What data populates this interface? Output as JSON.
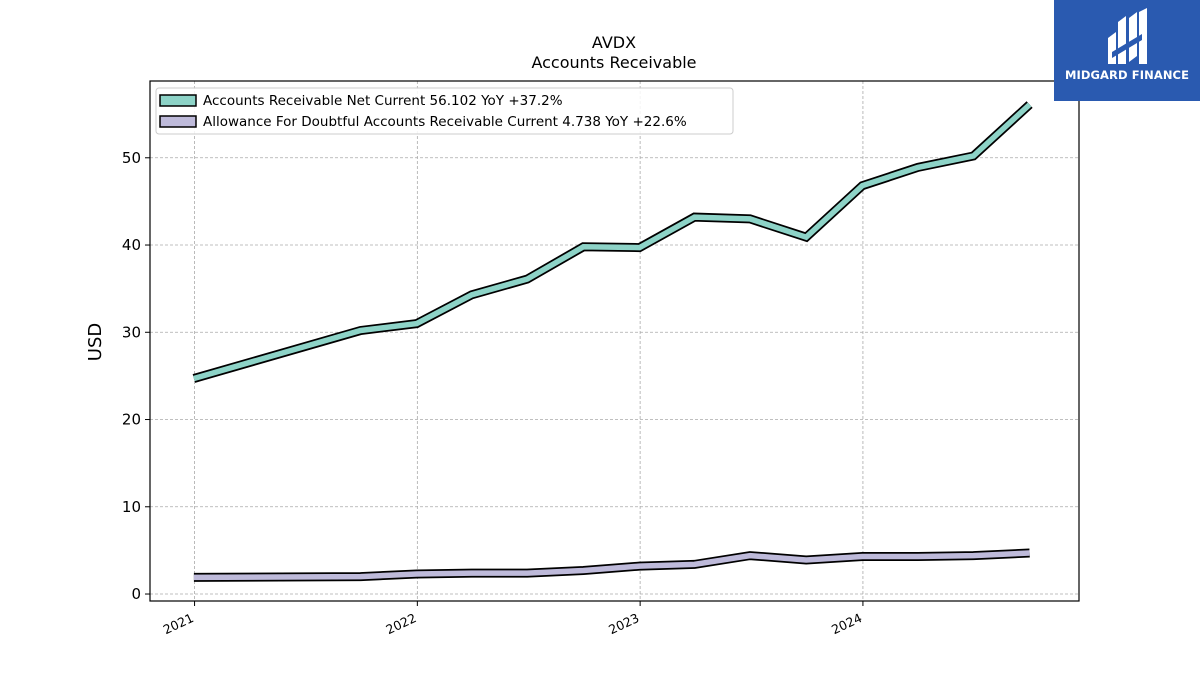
{
  "chart_data": {
    "type": "line",
    "title": "AVDX",
    "subtitle": "Accounts Receivable",
    "xlabel": "",
    "ylabel": "USD",
    "xlim": [
      "2020-10-20",
      "2024-12-20"
    ],
    "ylim": [
      -0.8,
      58.8
    ],
    "x_ticks": [
      "2021",
      "2022",
      "2023",
      "2024"
    ],
    "y_ticks": [
      0,
      10,
      20,
      30,
      40,
      50
    ],
    "grid": true,
    "legend_position": "top-left",
    "series": [
      {
        "name": "Accounts Receivable Net Current  56.102 YoY +37.2%",
        "color": "#8dd3c7",
        "x": [
          "2020-12-31",
          "2021-09-30",
          "2021-12-31",
          "2022-03-31",
          "2022-06-30",
          "2022-09-30",
          "2022-12-31",
          "2023-03-31",
          "2023-06-30",
          "2023-09-30",
          "2023-12-31",
          "2024-03-31",
          "2024-06-30",
          "2024-09-30"
        ],
        "values": [
          24.7,
          30.2,
          31.0,
          34.3,
          36.1,
          39.8,
          39.7,
          43.2,
          43.0,
          40.9,
          46.8,
          48.9,
          50.2,
          56.1
        ]
      },
      {
        "name": "Allowance For Doubtful Accounts Receivable Current  4.738 YoY +22.6%",
        "color": "#bebada",
        "x": [
          "2020-12-31",
          "2021-09-30",
          "2021-12-31",
          "2022-03-31",
          "2022-06-30",
          "2022-09-30",
          "2022-12-31",
          "2023-03-31",
          "2023-06-30",
          "2023-09-30",
          "2023-12-31",
          "2024-03-31",
          "2024-06-30",
          "2024-09-30"
        ],
        "values": [
          1.9,
          2.0,
          2.3,
          2.4,
          2.4,
          2.7,
          3.2,
          3.4,
          4.4,
          3.9,
          4.3,
          4.3,
          4.4,
          4.7
        ]
      }
    ]
  },
  "logo": {
    "text": "MIDGARD FINANCE",
    "icon": "midgard-logo-icon",
    "background": "#2a5ab0"
  }
}
